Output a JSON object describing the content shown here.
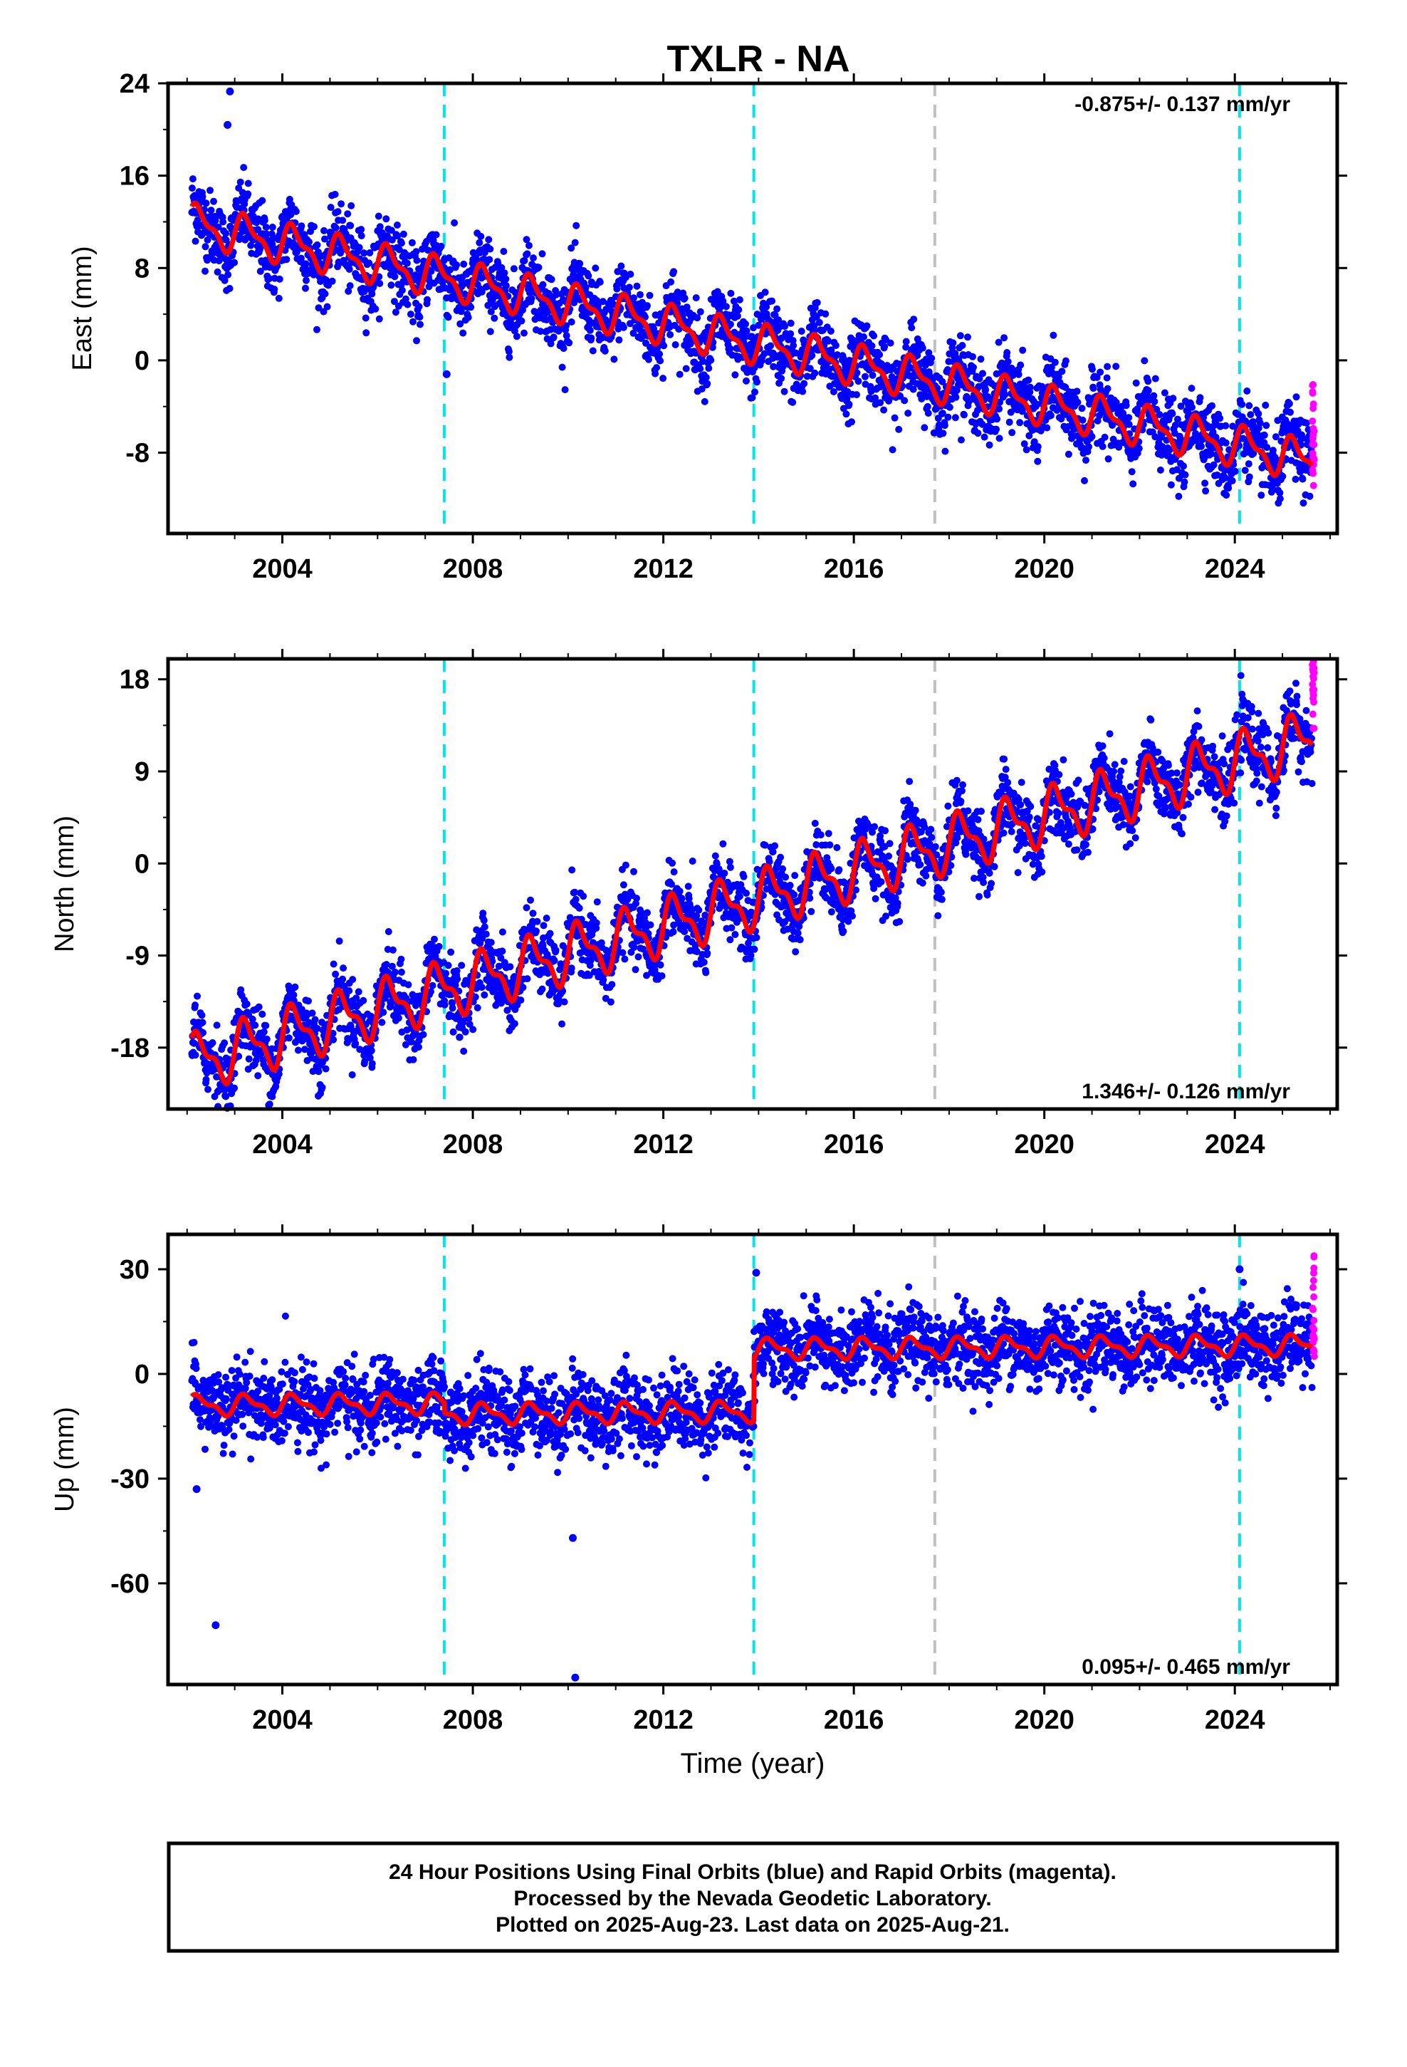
{
  "title": "TXLR - NA",
  "colors": {
    "final": "#0000ff",
    "rapid": "#ff00ff",
    "model": "#ff0000",
    "equipment_change": "#00e5ee",
    "other_event": "#c0c0c0"
  },
  "chart_data": [
    {
      "type": "scatter",
      "title": "TXLR - NA",
      "xlabel": "",
      "ylabel": "East (mm)",
      "xlim": [
        2001.6,
        2026.15
      ],
      "ylim": [
        -15,
        24
      ],
      "xticks": [
        2004,
        2008,
        2012,
        2016,
        2020,
        2024
      ],
      "xtick_labels": [
        "2004",
        "2008",
        "2012",
        "2016",
        "2020",
        "2024"
      ],
      "yticks": [
        24,
        16,
        8,
        0,
        -8
      ],
      "ytick_labels": [
        "24",
        "16",
        "8",
        "0",
        "-8"
      ],
      "rate_label": "-0.875+/- 0.137 mm/yr",
      "rate_position": "top-right",
      "events": [
        {
          "x": 2007.4,
          "type": "equipment"
        },
        {
          "x": 2013.9,
          "type": "equipment"
        },
        {
          "x": 2017.7,
          "type": "other"
        },
        {
          "x": 2024.1,
          "type": "equipment"
        }
      ],
      "model": {
        "start": 2002.1,
        "end": 2025.62,
        "value_at_start": 11.8,
        "rate": -0.875,
        "annual_amplitude": 1.5,
        "noise": 1.6,
        "steps": [],
        "outliers": [
          {
            "x": 2002.9,
            "y": 23.3
          },
          {
            "x": 2002.85,
            "y": 20.4
          },
          {
            "x": 2007.45,
            "y": -1.2
          }
        ]
      },
      "rapid": {
        "x": 2025.65,
        "y_range": [
          -11,
          -1
        ]
      }
    },
    {
      "type": "scatter",
      "title": "",
      "xlabel": "",
      "ylabel": "North (mm)",
      "xlim": [
        2001.6,
        2026.15
      ],
      "ylim": [
        -24,
        20
      ],
      "xticks": [
        2004,
        2008,
        2012,
        2016,
        2020,
        2024
      ],
      "xtick_labels": [
        "2004",
        "2008",
        "2012",
        "2016",
        "2020",
        "2024"
      ],
      "yticks": [
        18,
        9,
        0,
        -9,
        -18
      ],
      "ytick_labels": [
        "18",
        "9",
        "0",
        "-9",
        "-18"
      ],
      "rate_label": "1.346+/- 0.126 mm/yr",
      "rate_position": "bottom-right",
      "events": [
        {
          "x": 2007.4,
          "type": "equipment"
        },
        {
          "x": 2013.9,
          "type": "equipment"
        },
        {
          "x": 2017.7,
          "type": "other"
        },
        {
          "x": 2024.1,
          "type": "equipment"
        }
      ],
      "model": {
        "start": 2002.1,
        "end": 2025.62,
        "value_at_start": -19.5,
        "rate": 1.346,
        "annual_amplitude": 2.4,
        "noise": 1.7,
        "steps": [],
        "outliers": []
      },
      "rapid": {
        "x": 2025.65,
        "y_range": [
          13,
          20
        ]
      }
    },
    {
      "type": "scatter",
      "title": "",
      "xlabel": "Time (year)",
      "ylabel": "Up (mm)",
      "xlim": [
        2001.6,
        2026.15
      ],
      "ylim": [
        -89,
        40
      ],
      "xticks": [
        2004,
        2008,
        2012,
        2016,
        2020,
        2024
      ],
      "xtick_labels": [
        "2004",
        "2008",
        "2012",
        "2016",
        "2020",
        "2024"
      ],
      "yticks": [
        30,
        0,
        -30,
        -60
      ],
      "ytick_labels": [
        "30",
        "0",
        "-30",
        "-60"
      ],
      "rate_label": "0.095+/- 0.465 mm/yr",
      "rate_position": "bottom-right",
      "events": [
        {
          "x": 2007.4,
          "type": "equipment"
        },
        {
          "x": 2013.9,
          "type": "equipment"
        },
        {
          "x": 2017.7,
          "type": "other"
        },
        {
          "x": 2024.1,
          "type": "equipment"
        }
      ],
      "model": {
        "start": 2002.1,
        "end": 2025.62,
        "value_at_start": -9,
        "rate": 0.095,
        "annual_amplitude": 2.5,
        "noise": 5.5,
        "steps": [
          {
            "x": 2007.4,
            "dy": -3
          },
          {
            "x": 2013.9,
            "dy": 18
          }
        ],
        "outliers": [
          {
            "x": 2002.2,
            "y": -33
          },
          {
            "x": 2002.6,
            "y": -72
          },
          {
            "x": 2010.1,
            "y": -47
          },
          {
            "x": 2010.15,
            "y": -87
          },
          {
            "x": 2013.95,
            "y": 29
          },
          {
            "x": 2024.1,
            "y": 30
          }
        ]
      },
      "rapid": {
        "x": 2025.65,
        "y_range": [
          5,
          37
        ]
      }
    }
  ],
  "footer": {
    "line1": "24 Hour Positions Using Final Orbits (blue) and Rapid Orbits (magenta).",
    "line2": "Processed by the Nevada Geodetic Laboratory.",
    "line3": "Plotted on 2025-Aug-23. Last data on 2025-Aug-21."
  }
}
